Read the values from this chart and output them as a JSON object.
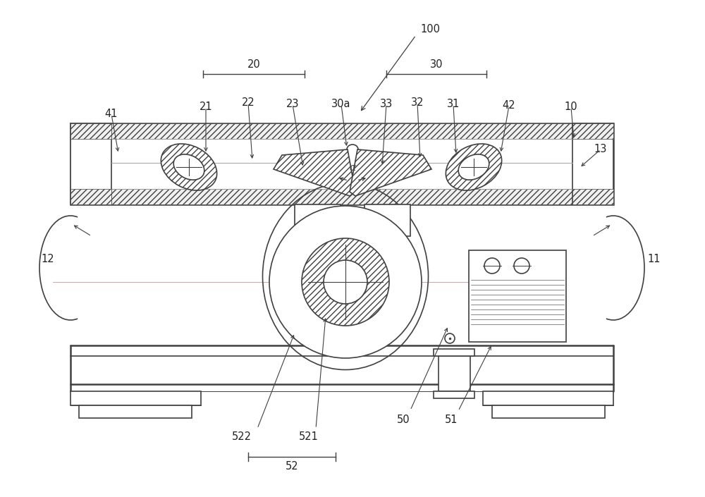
{
  "bg_color": "#ffffff",
  "line_color": "#404040",
  "fig_width": 10.0,
  "fig_height": 7.05
}
